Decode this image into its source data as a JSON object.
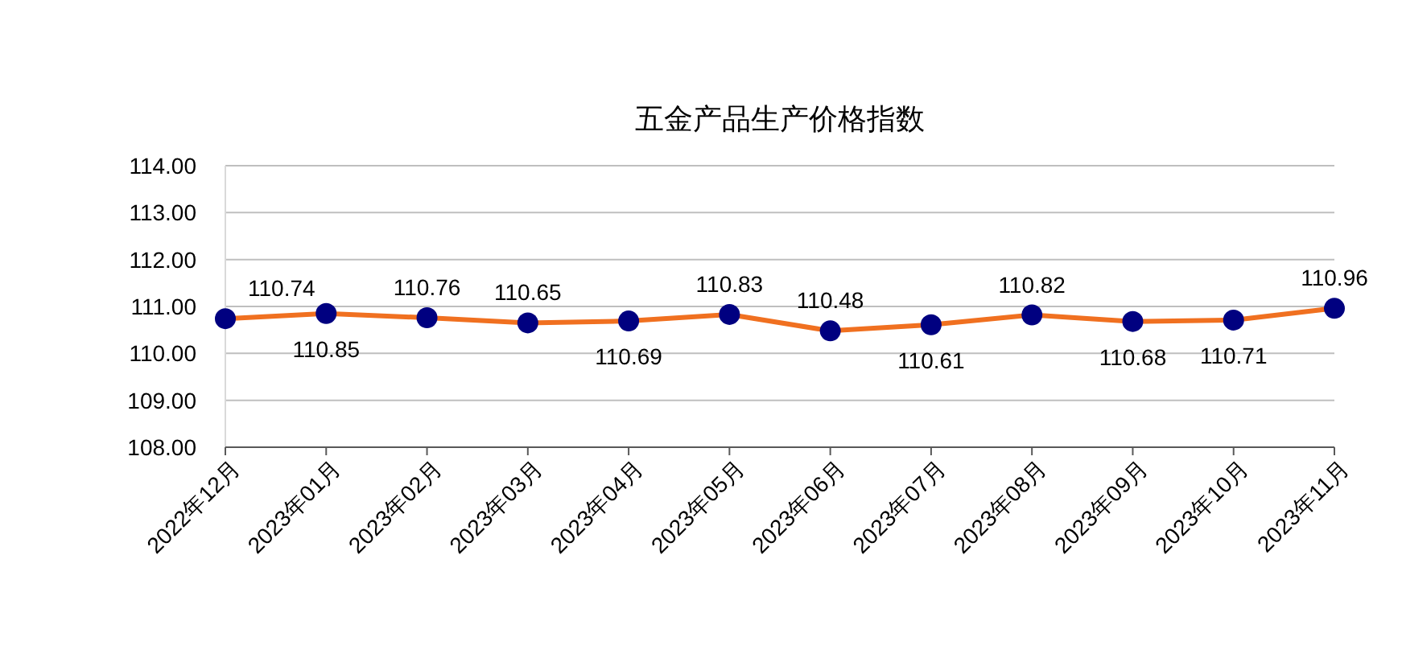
{
  "chart_data": {
    "type": "line",
    "title": "五金产品生产价格指数",
    "categories": [
      "2022年12月",
      "2023年01月",
      "2023年02月",
      "2023年03月",
      "2023年04月",
      "2023年05月",
      "2023年06月",
      "2023年07月",
      "2023年08月",
      "2023年09月",
      "2023年10月",
      "2023年11月"
    ],
    "series": [
      {
        "color": "#f07020",
        "colors": [
          "#000080",
          "#000080",
          "#000080",
          "#000080",
          "#000080",
          "#000080",
          "#000080",
          "#000080",
          "#000080",
          "#000080",
          "#000080",
          "#000080"
        ],
        "values": [
          110.74,
          110.85,
          110.76,
          110.65,
          110.69,
          110.83,
          110.48,
          110.61,
          110.82,
          110.68,
          110.71,
          110.96
        ]
      }
    ],
    "ylim": [
      108,
      114
    ],
    "yticks": [
      {
        "value": 108,
        "label": "108.00"
      },
      {
        "value": 109,
        "label": "109.00"
      },
      {
        "value": 110,
        "label": "110.00"
      },
      {
        "value": 111,
        "label": "111.00"
      },
      {
        "value": 112,
        "label": "112.00"
      },
      {
        "value": 113,
        "label": "113.00"
      },
      {
        "value": 114,
        "label": "114.00"
      }
    ],
    "grid": "y",
    "marker": "circle",
    "line_style": "solid",
    "data_labels": true
  }
}
